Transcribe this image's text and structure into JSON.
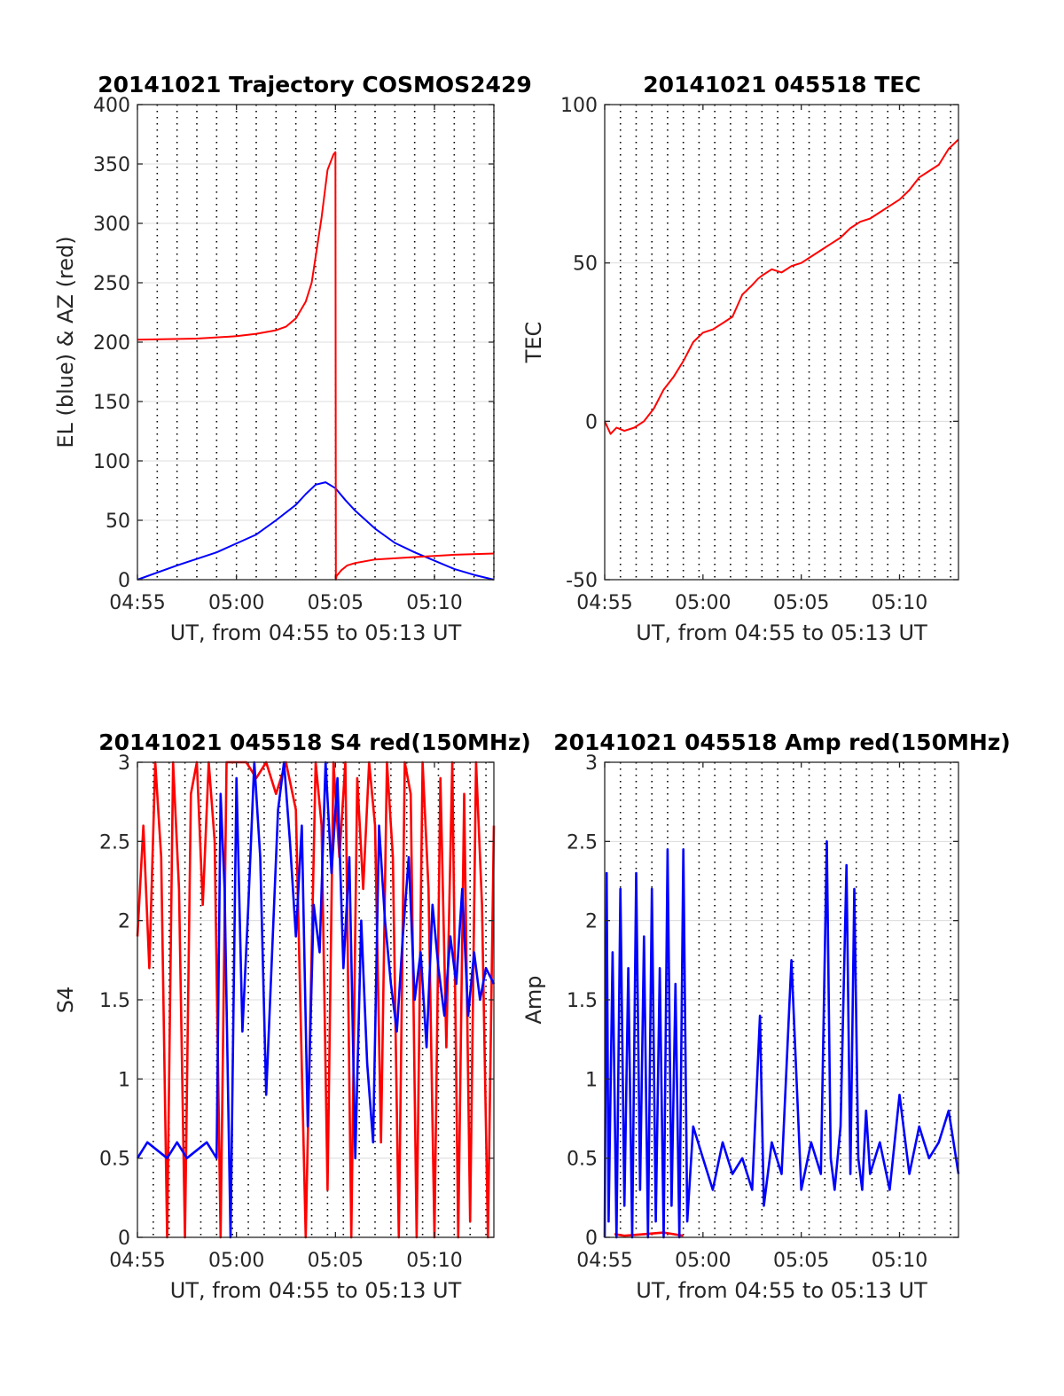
{
  "panels": [
    {
      "id": "trajectory",
      "title": "20141021 Trajectory COSMOS2429",
      "ylabel": "EL (blue) & AZ (red)",
      "xlabel": "UT, from 04:55 to 05:13 UT",
      "x_tick_labels": [
        "04:55",
        "05:00",
        "05:05",
        "05:10"
      ],
      "y_tick_labels": [
        "0",
        "50",
        "100",
        "150",
        "200",
        "250",
        "300",
        "350",
        "400"
      ]
    },
    {
      "id": "tec",
      "title": "20141021 045518 TEC",
      "ylabel": "TEC",
      "xlabel": "UT, from 04:55 to 05:13 UT",
      "x_tick_labels": [
        "04:55",
        "05:00",
        "05:05",
        "05:10"
      ],
      "y_tick_labels": [
        "-50",
        "0",
        "50",
        "100"
      ]
    },
    {
      "id": "s4",
      "title": "20141021 045518 S4 red(150MHz)",
      "ylabel": "S4",
      "xlabel": "UT, from 04:55 to 05:13 UT",
      "x_tick_labels": [
        "04:55",
        "05:00",
        "05:05",
        "05:10"
      ],
      "y_tick_labels": [
        "0",
        "0.5",
        "1",
        "1.5",
        "2",
        "2.5",
        "3"
      ]
    },
    {
      "id": "amp",
      "title": "20141021 045518 Amp red(150MHz)",
      "ylabel": "Amp",
      "xlabel": "UT, from 04:55 to 05:13 UT",
      "x_tick_labels": [
        "04:55",
        "05:00",
        "05:05",
        "05:10"
      ],
      "y_tick_labels": [
        "0",
        "0.5",
        "1",
        "1.5",
        "2",
        "2.5",
        "3"
      ]
    }
  ],
  "chart_data": [
    {
      "type": "line",
      "title": "20141021 Trajectory COSMOS2429",
      "xlabel": "UT, from 04:55 to 05:13 UT",
      "ylabel": "EL (blue) & AZ (red)",
      "xlim": [
        0,
        18
      ],
      "x_unit": "minutes after 04:55 UT",
      "ylim": [
        0,
        400
      ],
      "grid": "on",
      "vertical_marker_minutes": [
        1,
        2,
        3,
        4,
        5,
        6,
        7,
        8,
        9,
        10,
        11,
        12,
        13,
        14,
        15,
        16,
        17,
        18
      ],
      "series": [
        {
          "name": "EL",
          "color": "#0000ff",
          "x": [
            0,
            2,
            4,
            6,
            7,
            8,
            8.5,
            9,
            9.5,
            10,
            10.5,
            11,
            12,
            13,
            14,
            15,
            16,
            17,
            18
          ],
          "y": [
            0,
            12,
            23,
            38,
            50,
            63,
            72,
            80,
            82,
            77,
            67,
            58,
            43,
            31,
            23,
            16,
            9,
            4,
            0
          ]
        },
        {
          "name": "AZ",
          "color": "#ff0000",
          "x": [
            0,
            3,
            5,
            6,
            7,
            7.5,
            8,
            8.5,
            8.8,
            9,
            9.3,
            9.6,
            9.9,
            10.0,
            10.02,
            10.05,
            10.3,
            10.6,
            11,
            12,
            14,
            16,
            18
          ],
          "y": [
            202,
            203,
            205,
            207,
            210,
            213,
            220,
            234,
            250,
            272,
            305,
            345,
            358,
            360,
            0,
            3,
            8,
            12,
            14,
            17,
            19,
            21,
            22
          ]
        }
      ]
    },
    {
      "type": "line",
      "title": "20141021 045518 TEC",
      "xlabel": "UT, from 04:55 to 05:13 UT",
      "ylabel": "TEC",
      "xlim": [
        0,
        18
      ],
      "x_unit": "minutes after 04:55 UT",
      "ylim": [
        -50,
        100
      ],
      "grid": "on",
      "vertical_marker_minutes": [
        0.8,
        1.6,
        2.4,
        3.2,
        4.0,
        4.8,
        5.6,
        6.4,
        7.2,
        8.0,
        8.8,
        9.6,
        10.4,
        11.2,
        12.0,
        12.8,
        13.6,
        14.4,
        15.2,
        16.0,
        16.8,
        17.6
      ],
      "series": [
        {
          "color": "#ff0000",
          "x": [
            0,
            0.3,
            0.6,
            1.0,
            1.5,
            2.0,
            2.5,
            3.0,
            3.5,
            4.0,
            4.5,
            5.0,
            5.5,
            6.0,
            6.5,
            7.0,
            7.5,
            7.8,
            8.0,
            8.5,
            9.0,
            9.5,
            10.0,
            10.5,
            11.0,
            11.5,
            12.0,
            12.5,
            13.0,
            13.5,
            14.0,
            14.5,
            15.0,
            15.5,
            16.0,
            16.5,
            17.0,
            17.5,
            18.0
          ],
          "y": [
            0,
            -4,
            -2,
            -3,
            -2,
            0,
            4,
            10,
            14,
            19,
            25,
            28,
            29,
            31,
            33,
            40,
            43,
            45,
            46,
            48,
            47,
            49,
            50,
            52,
            54,
            56,
            58,
            61,
            63,
            64,
            66,
            68,
            70,
            73,
            77,
            79,
            81,
            86,
            89
          ]
        }
      ]
    },
    {
      "type": "line",
      "title": "20141021 045518 S4 red(150MHz)",
      "xlabel": "UT, from 04:55 to 05:13 UT",
      "ylabel": "S4",
      "xlim": [
        0,
        18
      ],
      "x_unit": "minutes after 04:55 UT",
      "ylim": [
        0,
        3
      ],
      "grid": "on",
      "vertical_marker_minutes": [
        0.8,
        1.6,
        2.4,
        3.2,
        4.0,
        4.8,
        5.6,
        6.4,
        7.2,
        8.0,
        8.8,
        9.6,
        10.4,
        11.2,
        12.0,
        12.8,
        13.6,
        14.4,
        15.2,
        16.0,
        16.8,
        17.6
      ],
      "series": [
        {
          "color": "#ff0000",
          "x": [
            0,
            0.3,
            0.6,
            0.9,
            1.2,
            1.5,
            1.8,
            2.1,
            2.4,
            2.7,
            3.0,
            3.3,
            3.6,
            3.9,
            4.2,
            4.5,
            5.0,
            5.5,
            6.0,
            6.5,
            7.0,
            7.5,
            8.0,
            8.5,
            9.0,
            9.3,
            9.6,
            9.9,
            10.2,
            10.5,
            10.8,
            11.1,
            11.4,
            11.7,
            12.0,
            12.3,
            12.6,
            12.9,
            13.2,
            13.5,
            13.8,
            14.1,
            14.4,
            14.7,
            15.0,
            15.3,
            15.6,
            15.9,
            16.2,
            16.5,
            16.8,
            17.1,
            17.4,
            17.7,
            18.0
          ],
          "y": [
            1.9,
            2.6,
            1.7,
            3.0,
            2.4,
            0.0,
            3.0,
            2.2,
            0.0,
            2.8,
            3.0,
            2.1,
            3.0,
            2.5,
            0.0,
            3.0,
            3.0,
            3.0,
            2.9,
            3.0,
            2.8,
            3.0,
            2.7,
            0.0,
            3.0,
            2.6,
            0.3,
            3.0,
            2.4,
            3.0,
            0.0,
            2.9,
            2.2,
            3.0,
            2.6,
            0.6,
            3.0,
            2.4,
            0.0,
            3.0,
            2.8,
            0.0,
            3.0,
            2.2,
            0.0,
            2.9,
            1.2,
            3.0,
            0.0,
            2.8,
            0.1,
            3.0,
            2.1,
            0.0,
            2.6
          ]
        },
        {
          "color": "#0000ff",
          "x": [
            0,
            0.5,
            1.0,
            1.5,
            2.0,
            2.5,
            3.0,
            3.5,
            4.0,
            4.2,
            4.4,
            4.7,
            5.0,
            5.3,
            5.6,
            5.9,
            6.2,
            6.5,
            6.8,
            7.1,
            7.4,
            7.7,
            8.0,
            8.3,
            8.6,
            8.9,
            9.2,
            9.5,
            9.8,
            10.1,
            10.4,
            10.7,
            11.0,
            11.3,
            11.6,
            11.9,
            12.2,
            12.5,
            12.8,
            13.1,
            13.4,
            13.7,
            14.0,
            14.3,
            14.6,
            14.9,
            15.2,
            15.5,
            15.8,
            16.1,
            16.4,
            16.7,
            17.0,
            17.3,
            17.6,
            18.0
          ],
          "y": [
            0.5,
            0.6,
            0.55,
            0.5,
            0.6,
            0.5,
            0.55,
            0.6,
            0.5,
            2.8,
            2.2,
            0.0,
            2.9,
            1.3,
            2.1,
            3.0,
            2.4,
            0.9,
            1.8,
            2.7,
            3.0,
            2.5,
            1.9,
            2.6,
            0.7,
            2.1,
            1.8,
            3.0,
            2.3,
            2.9,
            1.7,
            2.4,
            0.5,
            2.0,
            1.1,
            0.6,
            2.6,
            2.0,
            1.6,
            1.3,
            1.9,
            2.4,
            1.5,
            1.8,
            1.2,
            2.1,
            1.7,
            1.4,
            1.9,
            1.6,
            2.2,
            1.4,
            1.8,
            1.5,
            1.7,
            1.6
          ]
        }
      ]
    },
    {
      "type": "line",
      "title": "20141021 045518 Amp red(150MHz)",
      "xlabel": "UT, from 04:55 to 05:13 UT",
      "ylabel": "Amp",
      "xlim": [
        0,
        18
      ],
      "x_unit": "minutes after 04:55 UT",
      "ylim": [
        0,
        3
      ],
      "grid": "on",
      "vertical_marker_minutes": [
        0.8,
        1.6,
        2.4,
        3.2,
        4.0,
        4.8,
        5.6,
        6.4,
        7.2,
        8.0,
        8.8,
        9.6,
        10.4,
        11.2,
        12.0,
        12.8,
        13.6,
        14.4,
        15.2,
        16.0,
        16.8,
        17.6
      ],
      "series": [
        {
          "color": "#ff0000",
          "x": [
            0.5,
            1.0,
            2.0,
            3.0,
            4.0
          ],
          "y": [
            0.02,
            0.01,
            0.02,
            0.03,
            0.01
          ]
        },
        {
          "color": "#0000ff",
          "x": [
            0,
            0.1,
            0.2,
            0.4,
            0.6,
            0.8,
            1.0,
            1.2,
            1.4,
            1.6,
            1.8,
            2.0,
            2.2,
            2.4,
            2.6,
            2.8,
            3.0,
            3.2,
            3.4,
            3.6,
            3.8,
            4.0,
            4.2,
            4.5,
            5.0,
            5.5,
            6.0,
            6.5,
            7.0,
            7.5,
            7.9,
            8.1,
            8.5,
            9.0,
            9.5,
            10.0,
            10.5,
            11.0,
            11.3,
            11.5,
            11.7,
            12.0,
            12.3,
            12.5,
            12.7,
            12.9,
            13.1,
            13.3,
            13.5,
            14.0,
            14.5,
            15.0,
            15.5,
            16.0,
            16.5,
            17.0,
            17.5,
            18.0
          ],
          "y": [
            0.0,
            2.3,
            0.1,
            1.8,
            0.0,
            2.2,
            0.2,
            1.7,
            0.0,
            2.3,
            0.3,
            1.9,
            0.0,
            2.2,
            0.1,
            1.7,
            0.0,
            2.45,
            0.2,
            1.6,
            0.0,
            2.45,
            0.1,
            0.7,
            0.5,
            0.3,
            0.6,
            0.4,
            0.5,
            0.3,
            1.4,
            0.2,
            0.6,
            0.4,
            1.75,
            0.3,
            0.6,
            0.4,
            2.5,
            0.5,
            0.3,
            0.7,
            2.35,
            0.4,
            2.2,
            0.5,
            0.3,
            0.8,
            0.4,
            0.6,
            0.3,
            0.9,
            0.4,
            0.7,
            0.5,
            0.6,
            0.8,
            0.4
          ]
        }
      ]
    }
  ]
}
